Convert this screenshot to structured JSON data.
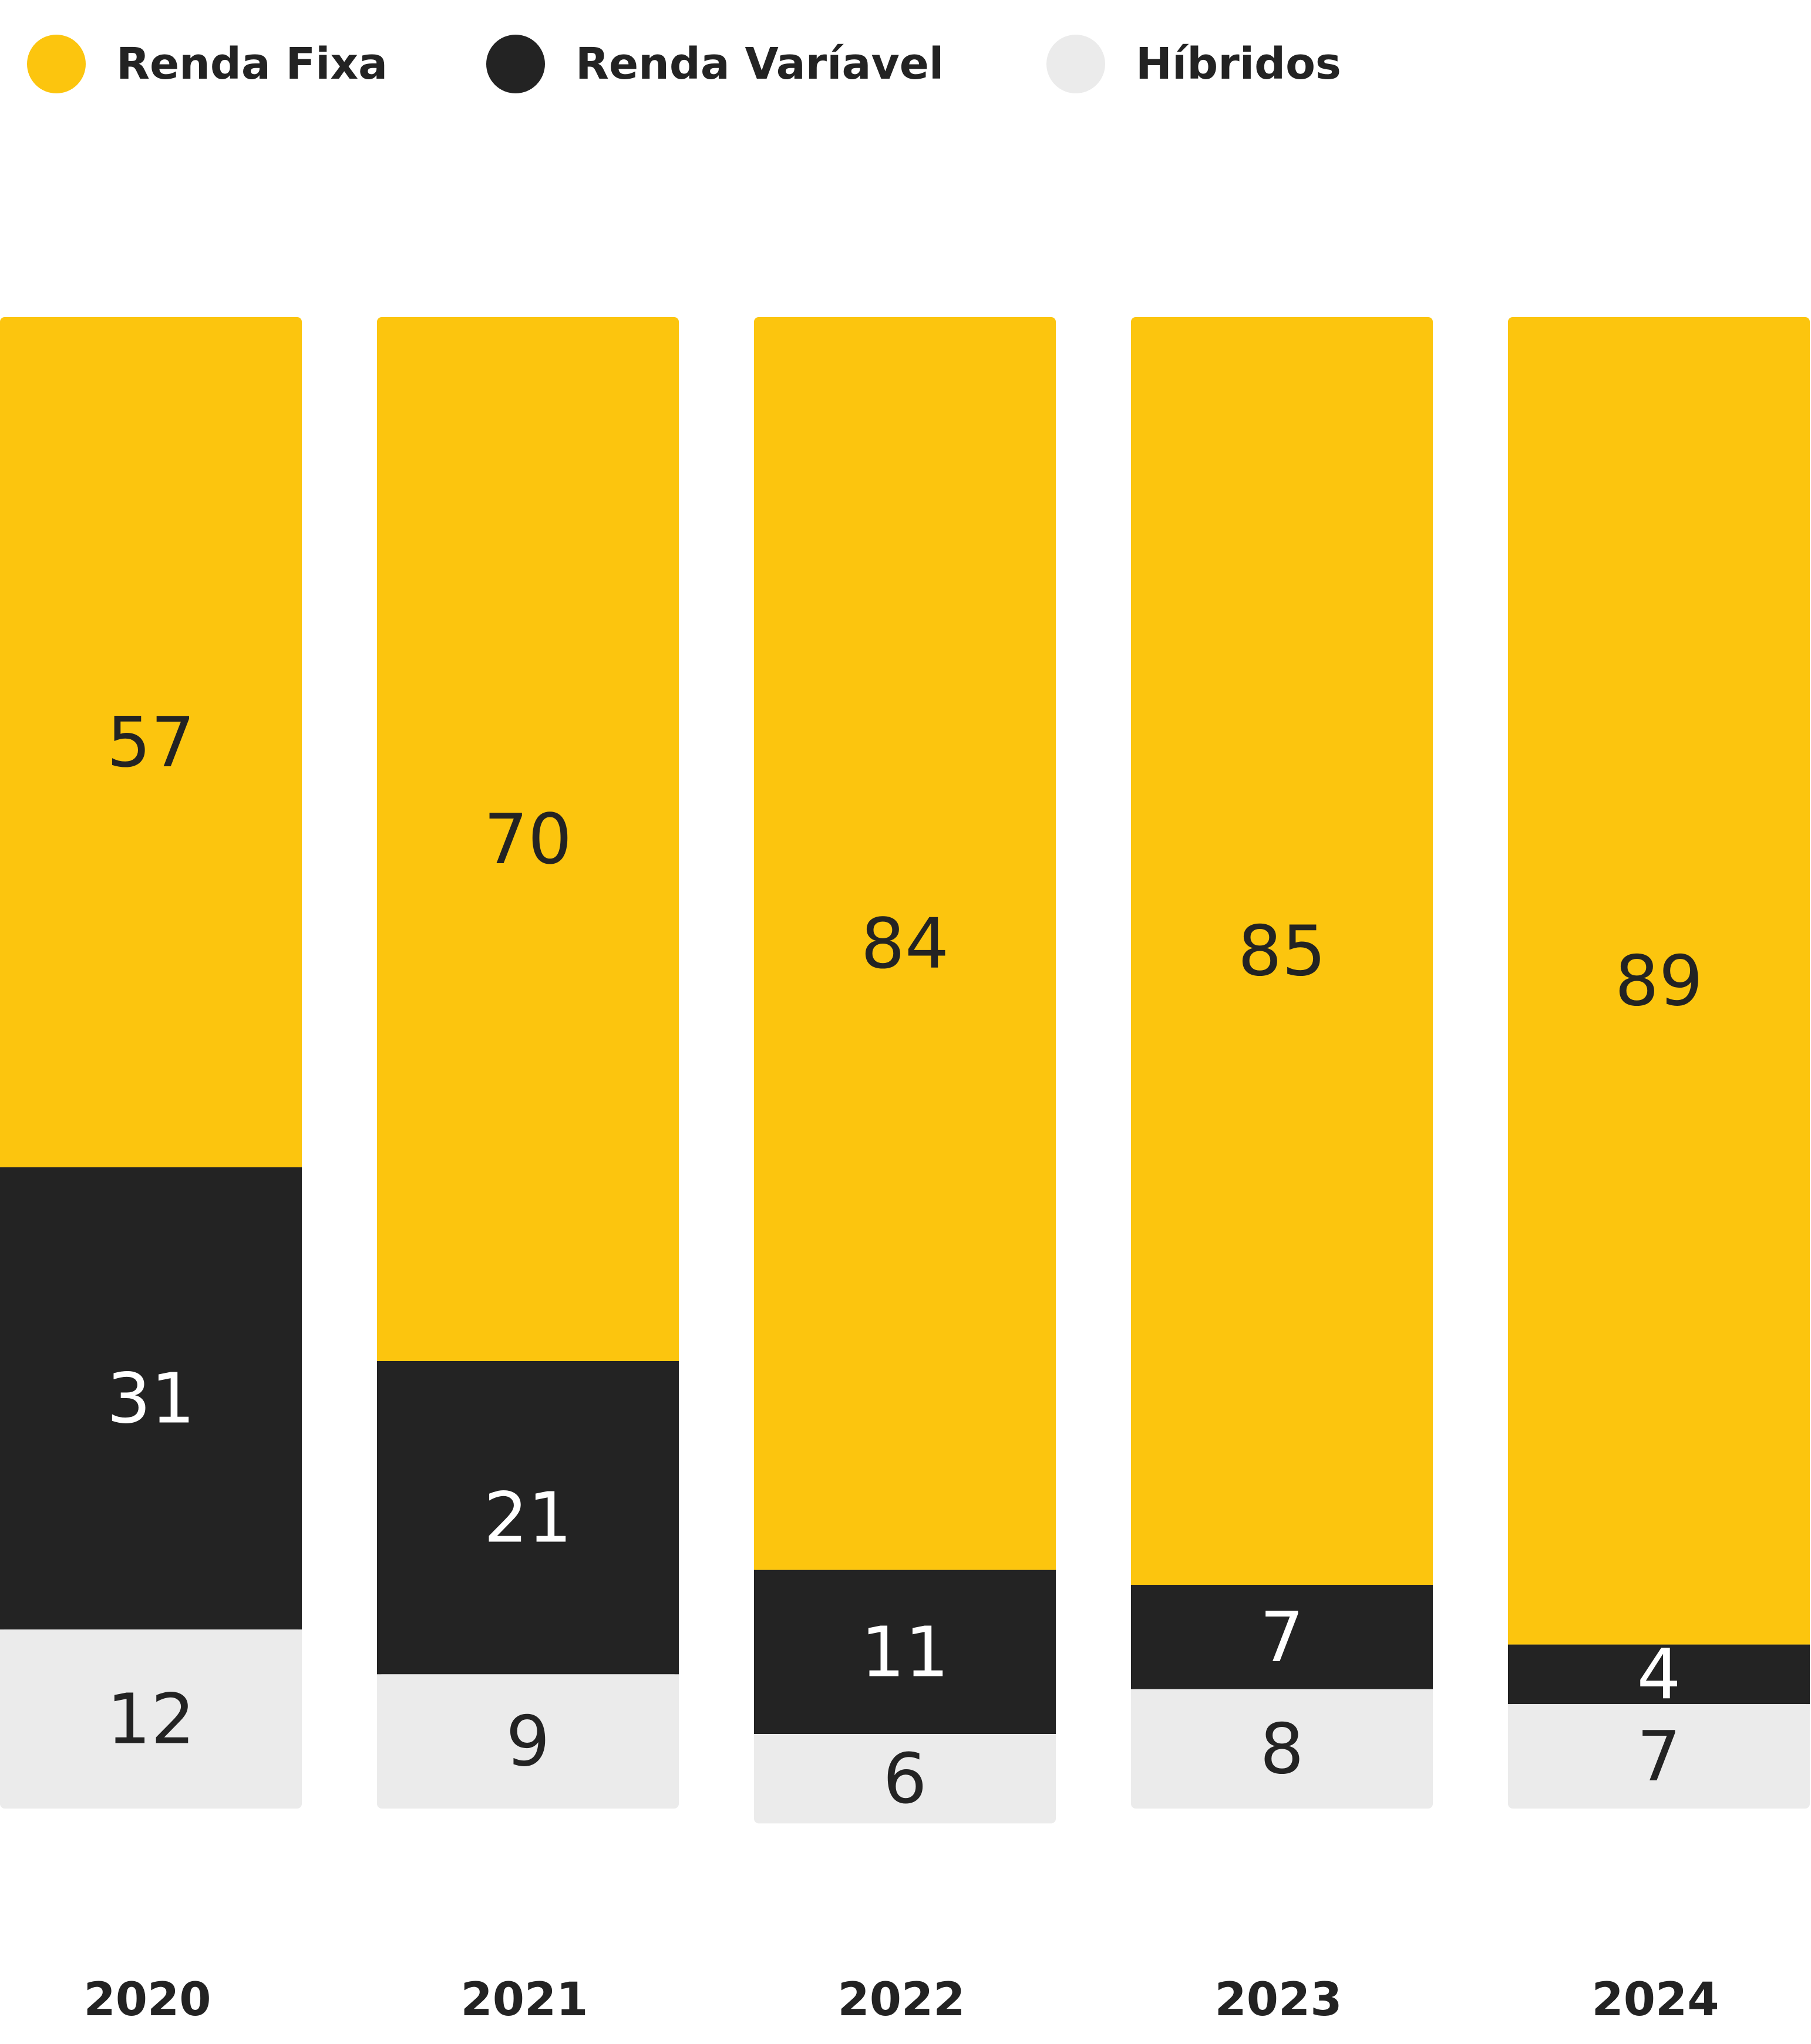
{
  "colors": {
    "renda_fixa": "#FCC50E",
    "renda_variavel": "#232323",
    "hibridos": "#EBEBEB",
    "label_dark": "#232323",
    "label_light": "#FFFFFF"
  },
  "legend": [
    {
      "name": "Renda Fixa",
      "color": "#FCC50E"
    },
    {
      "name": "Renda Varíavel",
      "color": "#232323"
    },
    {
      "name": "Híbridos",
      "color": "#EBEBEB"
    }
  ],
  "chart_data": {
    "type": "bar",
    "stacked": true,
    "title": "",
    "xlabel": "",
    "ylabel": "",
    "ylim": [
      0,
      100
    ],
    "grid": false,
    "legend_position": "top-left",
    "categories": [
      "2020",
      "2021",
      "2022",
      "2023",
      "2024"
    ],
    "series": [
      {
        "name": "Renda Fixa",
        "color": "#FCC50E",
        "values": [
          57,
          70,
          84,
          85,
          89
        ]
      },
      {
        "name": "Renda Varíavel",
        "color": "#232323",
        "values": [
          31,
          21,
          11,
          7,
          4
        ]
      },
      {
        "name": "Híbridos",
        "color": "#EBEBEB",
        "values": [
          12,
          9,
          6,
          8,
          7
        ]
      }
    ]
  }
}
